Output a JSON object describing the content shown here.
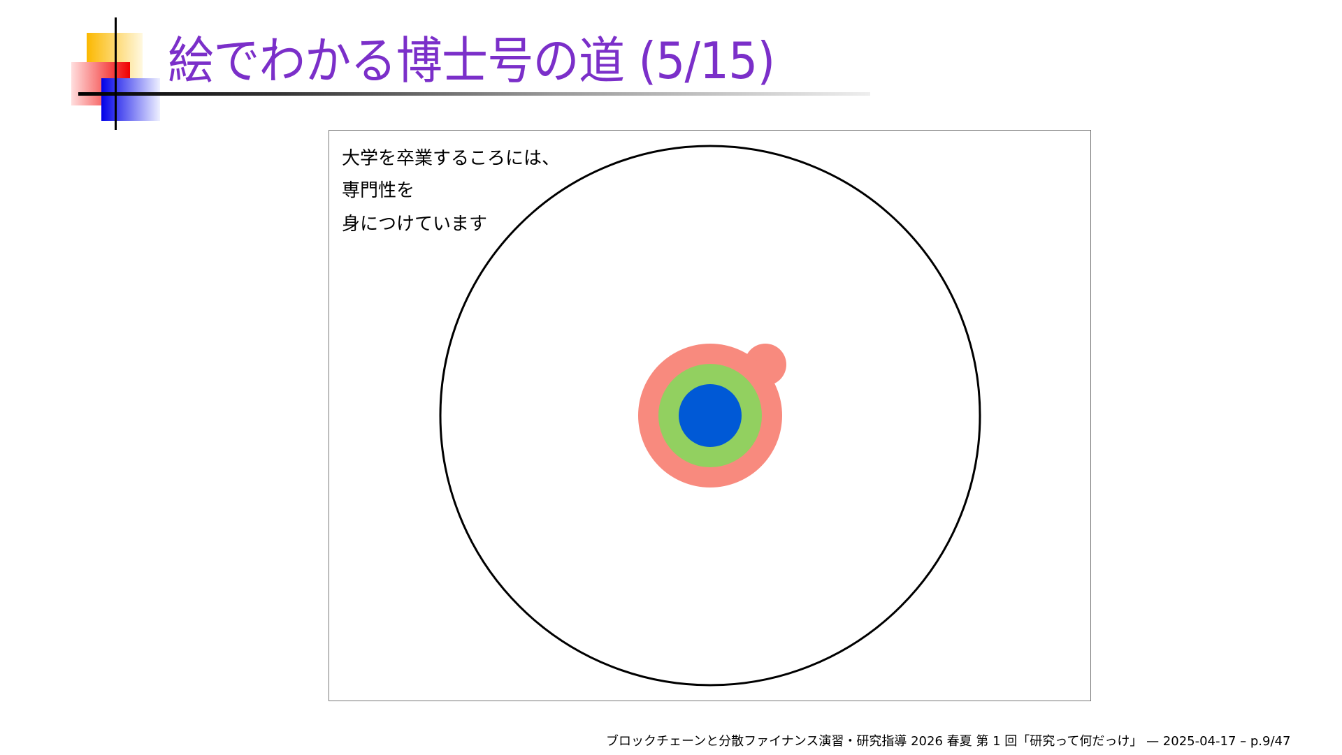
{
  "slide": {
    "title": "絵でわかる博士号の道 (5/15)",
    "body_lines": [
      "大学を卒業するころには、",
      "専門性を",
      "身につけています"
    ],
    "footer": "ブロックチェーンと分散ファイナンス演習・研究指導 2026 春夏 第 1 回「研究って何だっけ」 — 2025-04-17 – p.9/47"
  },
  "diagram": {
    "colors": {
      "outer_circle": "#000000",
      "bump": "#f88a7e",
      "outer_ring": "#f88a7e",
      "middle_ring": "#92d060",
      "core": "#0059d6",
      "title": "#7b2fc9"
    }
  }
}
